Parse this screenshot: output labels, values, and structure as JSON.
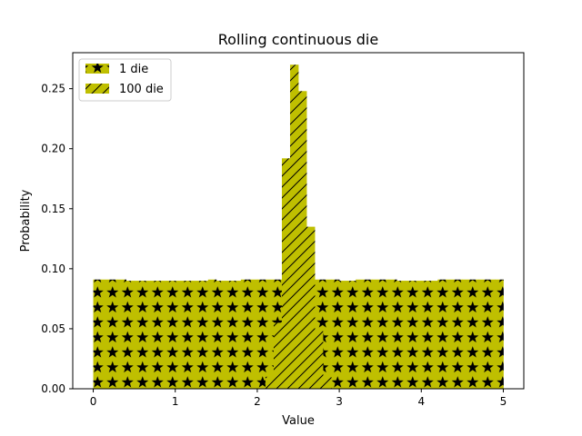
{
  "chart_data": {
    "type": "bar",
    "title": "Rolling continuous die",
    "xlabel": "Value",
    "ylabel": "Probability",
    "xlim": [
      -0.25,
      5.25
    ],
    "ylim": [
      0,
      0.28
    ],
    "xticks": [
      0,
      1,
      2,
      3,
      4,
      5
    ],
    "yticks": [
      0.0,
      0.05,
      0.1,
      0.15,
      0.2,
      0.25
    ],
    "ytick_labels": [
      "0.00",
      "0.05",
      "0.10",
      "0.15",
      "0.20",
      "0.25"
    ],
    "grid": false,
    "legend_position": "upper-left",
    "bar_color": "#bfbf00",
    "series": [
      {
        "name": "1 die",
        "hatch": "stars",
        "bin_edges": [
          0.0,
          0.1,
          0.2,
          0.3,
          0.4,
          0.5,
          0.6,
          0.7,
          0.8,
          0.9,
          1.0,
          1.1,
          1.2,
          1.3,
          1.4,
          1.5,
          1.6,
          1.7,
          1.8,
          1.9,
          2.0,
          2.1,
          2.2,
          2.3,
          2.4,
          2.5,
          2.6,
          2.7,
          2.8,
          2.9,
          3.0,
          3.1,
          3.2,
          3.3,
          3.4,
          3.5,
          3.6,
          3.7,
          3.8,
          3.9,
          4.0,
          4.1,
          4.2,
          4.3,
          4.4,
          4.5,
          4.6,
          4.7,
          4.8,
          4.9,
          5.0
        ],
        "values": [
          0.091,
          0.091,
          0.091,
          0.091,
          0.09,
          0.09,
          0.09,
          0.09,
          0.09,
          0.09,
          0.09,
          0.09,
          0.09,
          0.09,
          0.091,
          0.09,
          0.09,
          0.09,
          0.091,
          0.091,
          0.091,
          0.091,
          0.091,
          0.091,
          0.091,
          0.091,
          0.091,
          0.091,
          0.091,
          0.091,
          0.09,
          0.09,
          0.091,
          0.091,
          0.091,
          0.091,
          0.091,
          0.09,
          0.09,
          0.09,
          0.09,
          0.09,
          0.091,
          0.091,
          0.091,
          0.091,
          0.091,
          0.091,
          0.091,
          0.091
        ]
      },
      {
        "name": "100 die",
        "hatch": "diagonal",
        "bin_edges": [
          2.1,
          2.2,
          2.3,
          2.4,
          2.5,
          2.6,
          2.7,
          2.8,
          2.9
        ],
        "values": [
          0.01,
          0.055,
          0.192,
          0.27,
          0.248,
          0.135,
          0.048,
          0.01
        ]
      }
    ]
  }
}
